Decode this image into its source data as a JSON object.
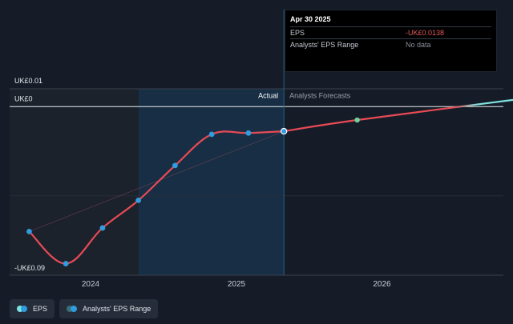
{
  "chart_data": {
    "type": "line",
    "y_tick_labels": {
      "top": "UK£0.01",
      "zero": "UK£0",
      "bottom": "-UK£0.09"
    },
    "x_tick_labels": [
      "2024",
      "2025",
      "2026"
    ],
    "region_labels": {
      "actual": "Actual",
      "forecast": "Analysts Forecasts"
    },
    "ylim": [
      -0.09,
      0.01
    ],
    "series": [
      {
        "name": "EPS",
        "kind": "actual",
        "color": "#e84a55",
        "points": [
          {
            "x": "2023-07-31",
            "y": -0.07
          },
          {
            "x": "2023-10-31",
            "y": -0.088
          },
          {
            "x": "2024-01-31",
            "y": -0.068
          },
          {
            "x": "2024-04-30",
            "y": -0.0525
          },
          {
            "x": "2024-07-31",
            "y": -0.033
          },
          {
            "x": "2024-10-31",
            "y": -0.0155
          },
          {
            "x": "2025-01-31",
            "y": -0.0148
          },
          {
            "x": "2025-04-30",
            "y": -0.0138
          }
        ]
      },
      {
        "name": "EPS",
        "kind": "forecast",
        "color": "#e84a55",
        "color_end": "#7ee3e0",
        "points": [
          {
            "x": "2025-04-30",
            "y": -0.0138
          },
          {
            "x": "2025-10-31",
            "y": -0.0075
          },
          {
            "x": "2026-12-31",
            "y": 0.0048
          }
        ]
      }
    ]
  },
  "tooltip": {
    "date": "Apr 30 2025",
    "rows": [
      {
        "label": "EPS",
        "value": "-UK£0.0138",
        "negative": true
      },
      {
        "label": "Analysts' EPS Range",
        "value": "No data",
        "negative": false
      }
    ]
  },
  "legend": [
    {
      "label": "EPS",
      "colors": [
        "#2f9de0",
        "#7ee3e0"
      ]
    },
    {
      "label": "Analysts' EPS Range",
      "colors": [
        "#2f9de0",
        "#3a6f73"
      ]
    }
  ],
  "colors": {
    "background": "#151c27",
    "past_shade": "#1b222c",
    "highlight_band": "#173049",
    "actual_point": "#2f9de0",
    "forecast_point": "#6fd3a0",
    "line": "#e84a55"
  }
}
